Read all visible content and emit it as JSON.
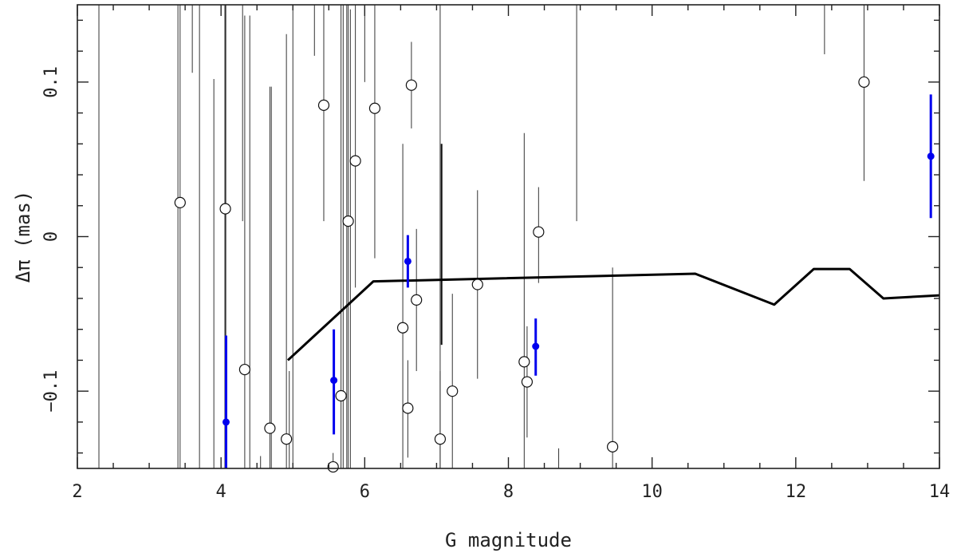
{
  "chart_data": {
    "type": "scatter",
    "xlabel": "G magnitude",
    "ylabel": "Δπ (mas)",
    "xlim": [
      2,
      14
    ],
    "ylim": [
      -0.15,
      0.15
    ],
    "x_ticks": [
      2,
      4,
      6,
      8,
      10,
      12,
      14
    ],
    "y_ticks": [
      -0.1,
      0,
      0.1
    ],
    "x_tick_labels": [
      "2",
      "4",
      "6",
      "8",
      "10",
      "12",
      "14"
    ],
    "y_tick_labels": [
      "−0.1",
      "0",
      "0.1"
    ],
    "grid": false,
    "error_bar_only": [
      {
        "x": 2.3,
        "y_low": -0.15,
        "y_high": 0.15
      },
      {
        "x": 3.4,
        "y_low": -0.15,
        "y_high": 0.15
      },
      {
        "x": 3.6,
        "y_low": 0.106,
        "y_high": 0.15
      },
      {
        "x": 3.7,
        "y_low": -0.15,
        "y_high": 0.15
      },
      {
        "x": 3.9,
        "y_low": -0.15,
        "y_high": 0.102
      },
      {
        "x": 4.3,
        "y_low": 0.01,
        "y_high": 0.15
      },
      {
        "x": 4.4,
        "y_low": -0.15,
        "y_high": 0.143
      },
      {
        "x": 4.55,
        "y_low": -0.15,
        "y_high": -0.142
      },
      {
        "x": 4.7,
        "y_low": -0.15,
        "y_high": 0.097
      },
      {
        "x": 4.95,
        "y_low": -0.15,
        "y_high": -0.087
      },
      {
        "x": 5.0,
        "y_low": -0.15,
        "y_high": 0.15
      },
      {
        "x": 5.3,
        "y_low": 0.117,
        "y_high": 0.15
      },
      {
        "x": 5.7,
        "y_low": -0.15,
        "y_high": 0.15
      },
      {
        "x": 5.75,
        "y_low": -0.15,
        "y_high": 0.15
      },
      {
        "x": 5.8,
        "y_low": -0.15,
        "y_high": 0.147
      },
      {
        "x": 6.0,
        "y_low": 0.1,
        "y_high": 0.15
      },
      {
        "x": 7.05,
        "y_low": -0.15,
        "y_high": 0.15
      },
      {
        "x": 8.7,
        "y_low": -0.15,
        "y_high": -0.137
      },
      {
        "x": 8.95,
        "y_low": 0.01,
        "y_high": 0.15
      },
      {
        "x": 12.4,
        "y_low": 0.118,
        "y_high": 0.15
      }
    ],
    "series": [
      {
        "marker": "open-circle",
        "color": "#000000",
        "points": [
          {
            "x": 3.43,
            "y": 0.022,
            "err_low": -0.15,
            "err_high": 0.15
          },
          {
            "x": 4.06,
            "y": 0.018,
            "err_low": -0.15,
            "err_high": 0.15
          },
          {
            "x": 4.33,
            "y": -0.086,
            "err_low": -0.15,
            "err_high": 0.143
          },
          {
            "x": 4.68,
            "y": -0.124,
            "err_low": -0.15,
            "err_high": 0.097
          },
          {
            "x": 4.91,
            "y": -0.131,
            "err_low": -0.15,
            "err_high": 0.131
          },
          {
            "x": 5.43,
            "y": 0.085,
            "err_low": 0.01,
            "err_high": 0.15
          },
          {
            "x": 5.56,
            "y": -0.149,
            "err_low": -0.15,
            "err_high": -0.14
          },
          {
            "x": 5.67,
            "y": -0.103,
            "err_low": -0.15,
            "err_high": 0.15
          },
          {
            "x": 5.77,
            "y": 0.01,
            "err_low": -0.15,
            "err_high": 0.15
          },
          {
            "x": 5.87,
            "y": 0.049,
            "err_low": -0.033,
            "err_high": 0.15
          },
          {
            "x": 6.14,
            "y": 0.083,
            "err_low": -0.014,
            "err_high": 0.15
          },
          {
            "x": 6.53,
            "y": -0.059,
            "err_low": -0.15,
            "err_high": 0.06
          },
          {
            "x": 6.6,
            "y": -0.111,
            "err_low": -0.143,
            "err_high": -0.08
          },
          {
            "x": 6.65,
            "y": 0.098,
            "err_low": 0.07,
            "err_high": 0.126
          },
          {
            "x": 6.72,
            "y": -0.041,
            "err_low": -0.087,
            "err_high": 0.005
          },
          {
            "x": 7.05,
            "y": -0.131,
            "err_low": -0.15,
            "err_high": -0.087
          },
          {
            "x": 7.22,
            "y": -0.1,
            "err_low": -0.15,
            "err_high": -0.037
          },
          {
            "x": 7.57,
            "y": -0.031,
            "err_low": -0.092,
            "err_high": 0.03
          },
          {
            "x": 8.22,
            "y": -0.081,
            "err_low": -0.15,
            "err_high": 0.067
          },
          {
            "x": 8.26,
            "y": -0.094,
            "err_low": -0.13,
            "err_high": -0.058
          },
          {
            "x": 8.42,
            "y": 0.003,
            "err_low": -0.03,
            "err_high": 0.032
          },
          {
            "x": 9.45,
            "y": -0.136,
            "err_low": -0.15,
            "err_high": -0.02
          },
          {
            "x": 12.95,
            "y": 0.1,
            "err_low": 0.036,
            "err_high": 0.15
          }
        ]
      },
      {
        "marker": "filled-dot",
        "color": "#0000ee",
        "points": [
          {
            "x": 4.07,
            "y": -0.12,
            "err_low": -0.15,
            "err_high": -0.064
          },
          {
            "x": 5.57,
            "y": -0.093,
            "err_low": -0.128,
            "err_high": -0.06
          },
          {
            "x": 6.6,
            "y": -0.016,
            "err_low": -0.033,
            "err_high": 0.001
          },
          {
            "x": 8.38,
            "y": -0.071,
            "err_low": -0.09,
            "err_high": -0.053
          },
          {
            "x": 13.88,
            "y": 0.052,
            "err_low": 0.012,
            "err_high": 0.092
          }
        ]
      },
      {
        "type": "line",
        "color": "#000000",
        "points": [
          {
            "x": 4.93,
            "y": -0.08
          },
          {
            "x": 6.12,
            "y": -0.029
          },
          {
            "x": 10.6,
            "y": -0.024
          },
          {
            "x": 11.7,
            "y": -0.044
          },
          {
            "x": 12.25,
            "y": -0.021
          },
          {
            "x": 12.75,
            "y": -0.021
          },
          {
            "x": 13.22,
            "y": -0.04
          },
          {
            "x": 14.0,
            "y": -0.038
          }
        ]
      }
    ],
    "extra_vertical_segments": [
      {
        "x": 4.06,
        "y_low": -0.15,
        "y_high": 0.15,
        "weight": "bold"
      },
      {
        "x": 7.07,
        "y_low": -0.07,
        "y_high": 0.06,
        "weight": "bold"
      }
    ]
  }
}
